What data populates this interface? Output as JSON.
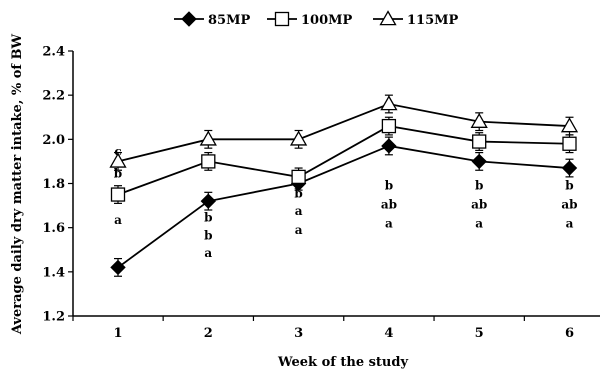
{
  "chart_data": {
    "type": "line",
    "xlabel": "Week of the study",
    "ylabel": "Average daily dry matter intake, % of BW",
    "ylim": [
      1.2,
      2.4
    ],
    "yticks": [
      "1.2",
      "1.4",
      "1.6",
      "1.8",
      "2.0",
      "2.2",
      "2.4"
    ],
    "x": [
      1,
      2,
      3,
      4,
      5,
      6
    ],
    "xticks": [
      "1",
      "2",
      "3",
      "4",
      "5",
      "6"
    ],
    "grid": false,
    "legend_position": "top",
    "series": [
      {
        "name": "85MP",
        "marker": "diamond",
        "color": "#000000",
        "values": [
          1.42,
          1.72,
          1.8,
          1.97,
          1.9,
          1.87
        ],
        "errors": [
          0.04,
          0.04,
          0.03,
          0.04,
          0.04,
          0.04
        ]
      },
      {
        "name": "100MP",
        "marker": "square",
        "color": "#000000",
        "values": [
          1.75,
          1.9,
          1.83,
          2.06,
          1.99,
          1.98
        ],
        "errors": [
          0.04,
          0.04,
          0.04,
          0.04,
          0.04,
          0.04
        ]
      },
      {
        "name": "115MP",
        "marker": "triangle",
        "color": "#000000",
        "values": [
          1.9,
          2.0,
          2.0,
          2.16,
          2.08,
          2.06
        ],
        "errors": [
          0.04,
          0.04,
          0.04,
          0.04,
          0.04,
          0.04
        ]
      }
    ],
    "annotations": [
      {
        "x": 1,
        "y": 1.946,
        "text": "c"
      },
      {
        "x": 1,
        "y": 1.846,
        "text": "b"
      },
      {
        "x": 1,
        "y": 1.635,
        "text": "a"
      },
      {
        "x": 2,
        "y": 1.645,
        "text": "b"
      },
      {
        "x": 2,
        "y": 1.565,
        "text": "b"
      },
      {
        "x": 2,
        "y": 1.485,
        "text": "a"
      },
      {
        "x": 3,
        "y": 1.755,
        "text": "b"
      },
      {
        "x": 3,
        "y": 1.675,
        "text": "a"
      },
      {
        "x": 3,
        "y": 1.59,
        "text": "a"
      },
      {
        "x": 4,
        "y": 1.79,
        "text": "b"
      },
      {
        "x": 4,
        "y": 1.705,
        "text": "ab"
      },
      {
        "x": 4,
        "y": 1.62,
        "text": "a"
      },
      {
        "x": 5,
        "y": 1.79,
        "text": "b"
      },
      {
        "x": 5,
        "y": 1.705,
        "text": "ab"
      },
      {
        "x": 5,
        "y": 1.62,
        "text": "a"
      },
      {
        "x": 6,
        "y": 1.79,
        "text": "b"
      },
      {
        "x": 6,
        "y": 1.705,
        "text": "ab"
      },
      {
        "x": 6,
        "y": 1.62,
        "text": "a"
      }
    ]
  }
}
